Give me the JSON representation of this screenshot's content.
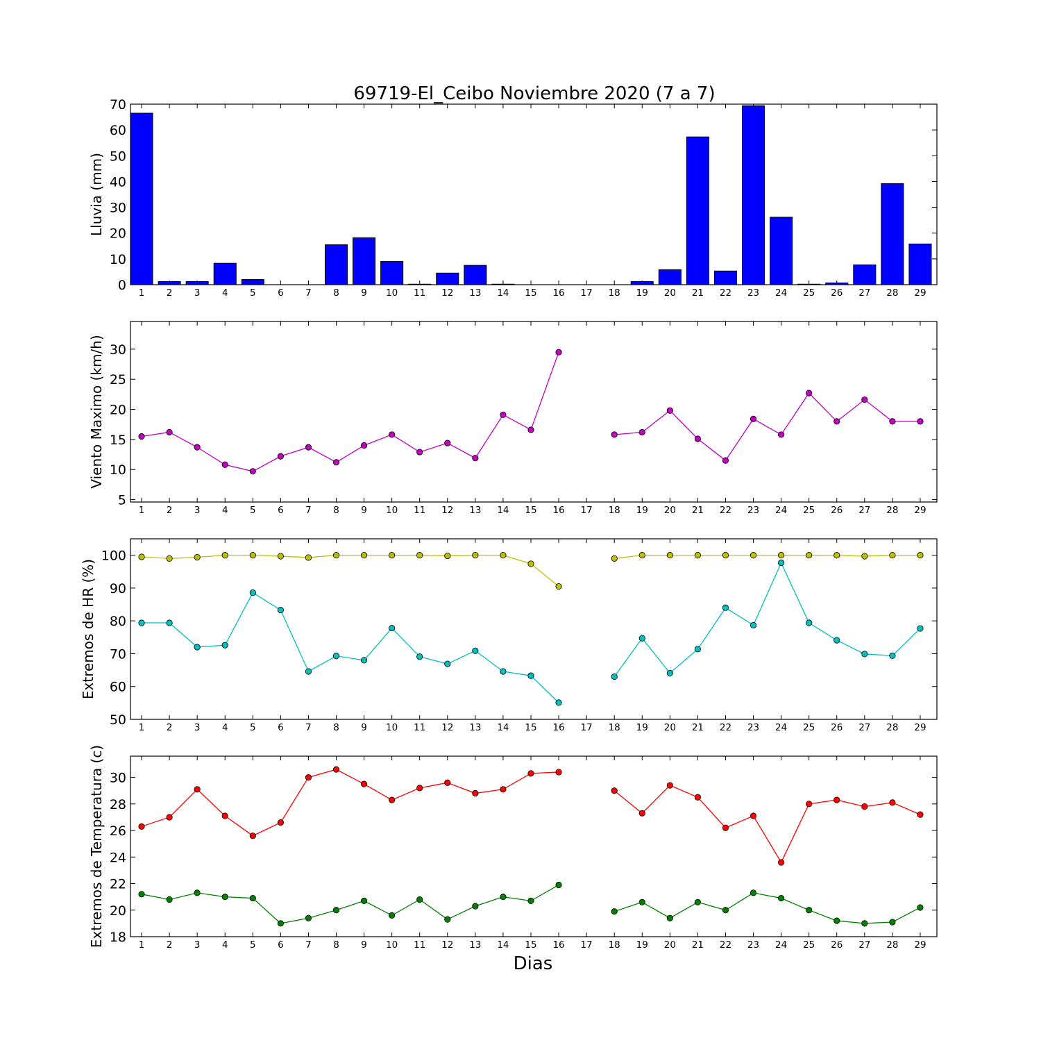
{
  "title": "69719-El_Ceibo Noviembre 2020  (7 a 7)",
  "xlabel": "Dias",
  "chart_data": [
    {
      "type": "bar",
      "ylabel": "Lluvia (mm)",
      "ylim": [
        0,
        70
      ],
      "yticks": [
        0,
        10,
        20,
        30,
        40,
        50,
        60,
        70
      ],
      "x": [
        1,
        2,
        3,
        4,
        5,
        6,
        7,
        8,
        9,
        10,
        11,
        12,
        13,
        14,
        15,
        16,
        17,
        18,
        19,
        20,
        21,
        22,
        23,
        24,
        25,
        26,
        27,
        28,
        29
      ],
      "xticks": [
        "1",
        "2",
        "3",
        "4",
        "5",
        "6",
        "7",
        "8",
        "9",
        "10",
        "11",
        "12",
        "13",
        "14",
        "15",
        "16",
        "17",
        "18",
        "19",
        "20",
        "21",
        "22",
        "23",
        "24",
        "25",
        "26",
        "27",
        "28",
        "29"
      ],
      "series": [
        {
          "color": "#0000ff",
          "values": [
            66.5,
            1.2,
            1.2,
            8.3,
            2.0,
            0,
            0,
            15.5,
            18.2,
            9.0,
            0.2,
            4.5,
            7.5,
            0.2,
            0,
            0,
            0,
            0,
            1.2,
            5.8,
            57.3,
            5.3,
            69.4,
            26.2,
            0.2,
            0.7,
            7.7,
            39.2,
            15.8
          ]
        }
      ]
    },
    {
      "type": "line",
      "ylabel": "Viento Maximo (km/h)",
      "ylim": [
        4.6,
        34.6
      ],
      "yticks": [
        5,
        10,
        15,
        20,
        25,
        30
      ],
      "x": [
        1,
        2,
        3,
        4,
        5,
        6,
        7,
        8,
        9,
        10,
        11,
        12,
        13,
        14,
        15,
        16,
        17,
        18,
        19,
        20,
        21,
        22,
        23,
        24,
        25,
        26,
        27,
        28,
        29
      ],
      "xticks": [
        "1",
        "2",
        "3",
        "4",
        "5",
        "6",
        "7",
        "8",
        "9",
        "10",
        "11",
        "12",
        "13",
        "14",
        "15",
        "16",
        "17",
        "18",
        "19",
        "20",
        "21",
        "22",
        "23",
        "24",
        "25",
        "26",
        "27",
        "28",
        "29"
      ],
      "series": [
        {
          "color": "#bf00bf",
          "values": [
            15.5,
            16.2,
            13.7,
            10.8,
            9.7,
            12.2,
            13.7,
            11.2,
            14.0,
            15.8,
            12.9,
            14.4,
            11.9,
            19.1,
            16.6,
            29.5,
            null,
            15.8,
            16.2,
            19.8,
            15.1,
            11.5,
            18.4,
            15.8,
            22.7,
            18.0,
            21.6,
            18.0,
            18.0
          ]
        }
      ]
    },
    {
      "type": "line",
      "ylabel": "Extremos de HR (%)",
      "ylim": [
        50,
        105
      ],
      "yticks": [
        50,
        60,
        70,
        80,
        90,
        100
      ],
      "x": [
        1,
        2,
        3,
        4,
        5,
        6,
        7,
        8,
        9,
        10,
        11,
        12,
        13,
        14,
        15,
        16,
        17,
        18,
        19,
        20,
        21,
        22,
        23,
        24,
        25,
        26,
        27,
        28,
        29
      ],
      "xticks": [
        "1",
        "2",
        "3",
        "4",
        "5",
        "6",
        "7",
        "8",
        "9",
        "10",
        "11",
        "12",
        "13",
        "14",
        "15",
        "16",
        "17",
        "18",
        "19",
        "20",
        "21",
        "22",
        "23",
        "24",
        "25",
        "26",
        "27",
        "28",
        "29"
      ],
      "series": [
        {
          "color": "#bfbf00",
          "values": [
            99.5,
            99.0,
            99.4,
            100,
            100,
            99.7,
            99.3,
            100,
            100,
            100,
            100,
            99.8,
            100,
            100,
            97.4,
            90.5,
            null,
            99.0,
            100,
            100,
            100,
            100,
            100,
            100,
            100,
            100,
            99.7,
            100,
            100
          ]
        },
        {
          "color": "#00bfbf",
          "values": [
            79.4,
            79.4,
            72.0,
            72.6,
            88.6,
            83.3,
            64.6,
            69.3,
            68.0,
            77.8,
            69.1,
            66.9,
            70.9,
            64.6,
            63.3,
            55.1,
            null,
            63.0,
            74.7,
            64.1,
            71.4,
            84.0,
            78.7,
            97.7,
            79.4,
            74.1,
            69.9,
            69.4,
            77.7
          ]
        }
      ]
    },
    {
      "type": "line",
      "ylabel": "Extremos de Temperatura (c)",
      "ylim": [
        18,
        31.6
      ],
      "yticks": [
        18,
        20,
        22,
        24,
        26,
        28,
        30
      ],
      "x": [
        1,
        2,
        3,
        4,
        5,
        6,
        7,
        8,
        9,
        10,
        11,
        12,
        13,
        14,
        15,
        16,
        17,
        18,
        19,
        20,
        21,
        22,
        23,
        24,
        25,
        26,
        27,
        28,
        29
      ],
      "xticks": [
        "1",
        "2",
        "3",
        "4",
        "5",
        "6",
        "7",
        "8",
        "9",
        "10",
        "11",
        "12",
        "13",
        "14",
        "15",
        "16",
        "17",
        "18",
        "19",
        "20",
        "21",
        "22",
        "23",
        "24",
        "25",
        "26",
        "27",
        "28",
        "29"
      ],
      "series": [
        {
          "color": "#ff0000",
          "values": [
            26.3,
            27.0,
            29.1,
            27.1,
            25.6,
            26.6,
            30.0,
            30.6,
            29.5,
            28.3,
            29.2,
            29.6,
            28.8,
            29.1,
            30.3,
            30.4,
            null,
            29.0,
            27.3,
            29.4,
            28.5,
            26.2,
            27.1,
            23.6,
            28.0,
            28.3,
            27.8,
            28.1,
            27.2
          ]
        },
        {
          "color": "#008000",
          "values": [
            21.2,
            20.8,
            21.3,
            21.0,
            20.9,
            19.0,
            19.4,
            20.0,
            20.7,
            19.6,
            20.8,
            19.3,
            20.3,
            21.0,
            20.7,
            21.9,
            null,
            19.9,
            20.6,
            19.4,
            20.6,
            20.0,
            21.3,
            20.9,
            20.0,
            19.2,
            19.0,
            19.1,
            20.2
          ]
        }
      ]
    }
  ]
}
